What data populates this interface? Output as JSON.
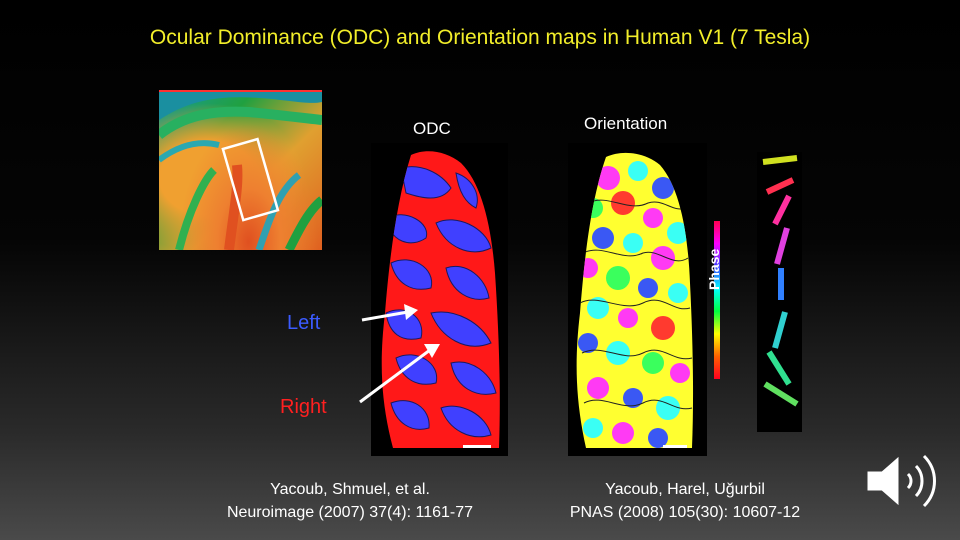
{
  "slide": {
    "title": "Ocular Dominance (ODC) and Orientation maps in Human V1 (7 Tesla)",
    "odc_label": "ODC",
    "orientation_label": "Orientation",
    "left_label": "Left",
    "right_label": "Right",
    "phase_label": "Phase"
  },
  "references": {
    "odc": {
      "authors": "Yacoub, Shmuel, et al.",
      "journal": "Neuroimage (2007) 37(4): 1161-77"
    },
    "orientation": {
      "authors": "Yacoub, Harel, Uğurbil",
      "journal": "PNAS (2008) 105(30): 10607-12"
    }
  },
  "colors": {
    "title": "#f2ee2a",
    "left_eye": "#3b5bff",
    "right_eye": "#ff2020"
  },
  "icons": {
    "speaker": "speaker-icon"
  }
}
